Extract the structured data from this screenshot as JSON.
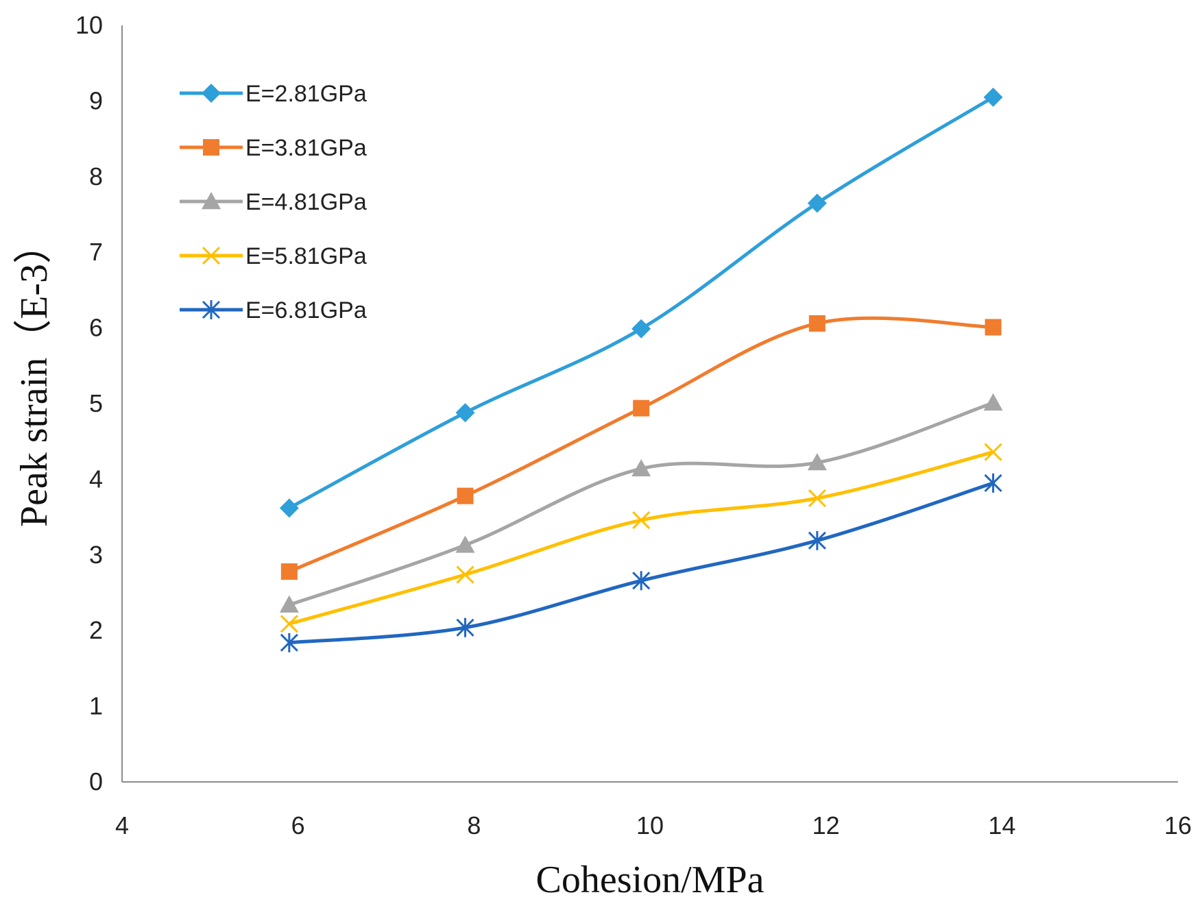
{
  "chart_data": {
    "type": "line",
    "title": "",
    "xlabel": "Cohesion/MPa",
    "ylabel": "Peak strain（E-3）",
    "xlim": [
      4,
      16
    ],
    "ylim": [
      0,
      10
    ],
    "xticks": [
      4,
      6,
      8,
      10,
      12,
      14,
      16
    ],
    "yticks": [
      0,
      1,
      2,
      3,
      4,
      5,
      6,
      7,
      8,
      9,
      10
    ],
    "grid": false,
    "smooth": true,
    "legend": {
      "position": "top-left"
    },
    "x": [
      5.9,
      7.9,
      9.9,
      11.9,
      13.9
    ],
    "series": [
      {
        "name": "E=2.81GPa",
        "color": "#2E9FD9",
        "marker": "diamond",
        "values": [
          3.62,
          4.88,
          5.99,
          7.65,
          9.05
        ]
      },
      {
        "name": "E=3.81GPa",
        "color": "#F07C2D",
        "marker": "square",
        "values": [
          2.78,
          3.78,
          4.94,
          6.06,
          6.01
        ]
      },
      {
        "name": "E=4.81GPa",
        "color": "#A5A5A5",
        "marker": "triangle",
        "values": [
          2.34,
          3.13,
          4.14,
          4.22,
          5.01
        ]
      },
      {
        "name": "E=5.81GPa",
        "color": "#FFBF00",
        "marker": "x",
        "values": [
          2.09,
          2.74,
          3.46,
          3.75,
          4.36
        ]
      },
      {
        "name": "E=6.81GPa",
        "color": "#2167C0",
        "marker": "star",
        "values": [
          1.84,
          2.04,
          2.66,
          3.19,
          3.95
        ]
      }
    ]
  }
}
